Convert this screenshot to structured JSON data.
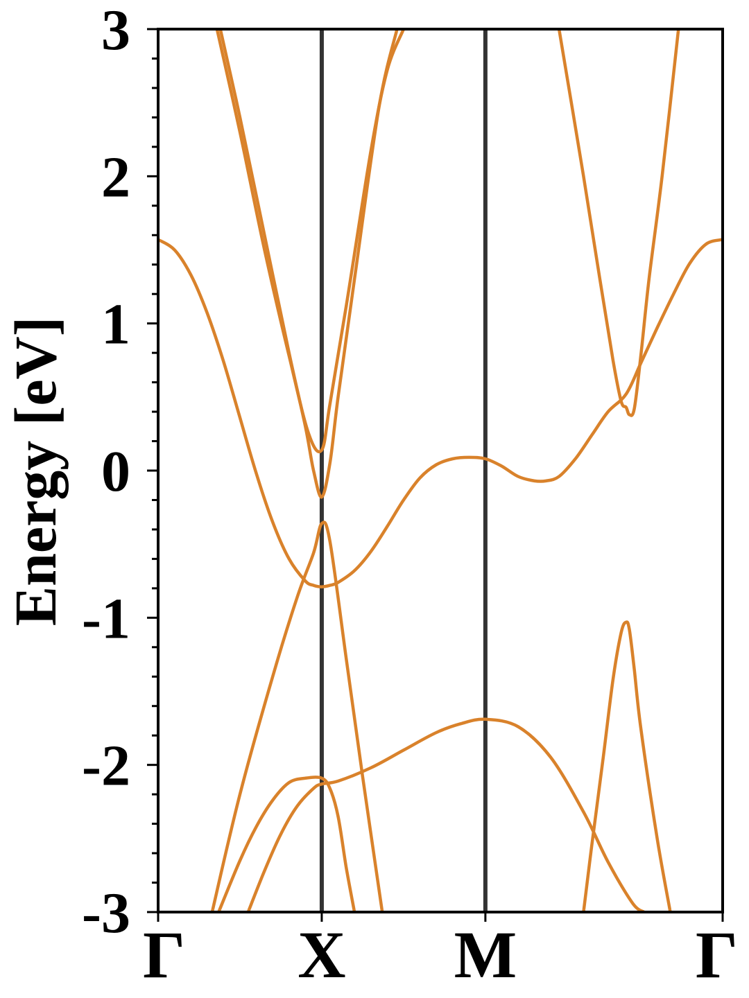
{
  "chart_data": {
    "type": "line",
    "title": "",
    "xlabel": "",
    "ylabel": "Energy [eV]",
    "ylim": [
      -3,
      3
    ],
    "xlim": [
      0,
      3.45
    ],
    "y_ticks": [
      "-3",
      "-2",
      "-1",
      "0",
      "1",
      "2",
      "3"
    ],
    "y_minor_step": 0.2,
    "x_ticks": [
      {
        "label": "Γ",
        "x": 0
      },
      {
        "label": "X",
        "x": 1
      },
      {
        "label": "M",
        "x": 2
      },
      {
        "label": "Γ",
        "x": 3.45
      }
    ],
    "vlines": [
      1,
      2
    ],
    "line_color": "#d9822b",
    "vline_color": "#333333",
    "grid": false,
    "series": [
      {
        "x": [
          0,
          0.1,
          0.2,
          0.3,
          0.4,
          0.5,
          0.6,
          0.7,
          0.8,
          0.9,
          0.95,
          1.0,
          1.05,
          1.1,
          1.2,
          1.3,
          1.4,
          1.5,
          1.6,
          1.7,
          1.8,
          1.9,
          2.0,
          2.1,
          2.2,
          2.3,
          2.37,
          2.45,
          2.55,
          2.65,
          2.75,
          2.86,
          2.95,
          3.05,
          3.15,
          3.25,
          3.35,
          3.45
        ],
        "y": [
          1.57,
          1.5,
          1.33,
          1.07,
          0.74,
          0.36,
          -0.02,
          -0.35,
          -0.6,
          -0.75,
          -0.78,
          -0.79,
          -0.78,
          -0.76,
          -0.68,
          -0.55,
          -0.38,
          -0.2,
          -0.05,
          0.04,
          0.08,
          0.09,
          0.08,
          0.03,
          -0.04,
          -0.07,
          -0.07,
          -0.04,
          0.08,
          0.24,
          0.4,
          0.52,
          0.73,
          0.97,
          1.2,
          1.41,
          1.54,
          1.57
        ]
      },
      {
        "x": [
          0.37,
          0.5,
          0.6,
          0.7,
          0.8,
          0.9,
          1.0,
          1.05,
          1.1,
          1.15,
          1.2
        ],
        "y": [
          -3.0,
          -2.65,
          -2.42,
          -2.24,
          -2.12,
          -2.09,
          -2.09,
          -2.16,
          -2.35,
          -2.7,
          -3.0
        ]
      },
      {
        "x": [
          0.55,
          0.65,
          0.75,
          0.85,
          0.95,
          1.0,
          1.1,
          1.3,
          1.5,
          1.7,
          1.85,
          2.0,
          2.2,
          2.4,
          2.6,
          2.75,
          2.9,
          2.97
        ],
        "y": [
          -3.0,
          -2.72,
          -2.47,
          -2.28,
          -2.16,
          -2.13,
          -2.11,
          -2.02,
          -1.9,
          -1.78,
          -1.72,
          -1.69,
          -1.74,
          -1.95,
          -2.32,
          -2.66,
          -2.94,
          -3.0
        ]
      },
      {
        "x": [
          0.33,
          0.5,
          0.7,
          0.85,
          0.95,
          1.0,
          1.05,
          1.15,
          1.25,
          1.37
        ],
        "y": [
          -3.0,
          -2.2,
          -1.4,
          -0.86,
          -0.56,
          -0.36,
          -0.48,
          -1.28,
          -2.08,
          -3.0
        ]
      },
      {
        "x": [
          0.36,
          0.5,
          0.65,
          0.8,
          0.92,
          1.0,
          1.05,
          1.15,
          1.3,
          1.4,
          1.5
        ],
        "y": [
          3.0,
          2.3,
          1.5,
          0.78,
          0.25,
          0.14,
          0.45,
          1.12,
          2.17,
          2.72,
          3.0
        ]
      },
      {
        "x": [
          0.38,
          0.5,
          0.65,
          0.8,
          0.9,
          0.95,
          1.0,
          1.05,
          1.1,
          1.2,
          1.35,
          1.46
        ],
        "y": [
          3.0,
          2.4,
          1.6,
          0.8,
          0.3,
          0.0,
          -0.18,
          0.05,
          0.5,
          1.3,
          2.47,
          3.0
        ]
      },
      {
        "x": [
          2.45,
          2.6,
          2.7,
          2.78,
          2.83,
          2.86,
          2.88,
          2.91,
          2.95,
          3.0,
          3.08,
          3.18
        ],
        "y": [
          3.0,
          2.0,
          1.3,
          0.75,
          0.47,
          0.43,
          0.38,
          0.42,
          0.78,
          1.3,
          2.0,
          3.0
        ]
      },
      {
        "x": [
          2.6,
          2.65,
          2.72,
          2.78,
          2.83,
          2.86,
          2.88,
          2.91,
          2.95,
          3.05,
          3.13
        ],
        "y": [
          -3.0,
          -2.55,
          -1.95,
          -1.42,
          -1.1,
          -1.03,
          -1.08,
          -1.35,
          -1.75,
          -2.5,
          -3.0
        ]
      }
    ]
  }
}
